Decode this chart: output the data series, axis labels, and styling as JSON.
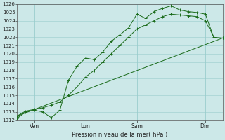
{
  "bg_color": "#cce8e8",
  "grid_color": "#99cccc",
  "line_color": "#1a6b1a",
  "title": "Pression niveau de la mer( hPa )",
  "ylim": [
    1012,
    1026
  ],
  "xlim": [
    0,
    12
  ],
  "yticks": [
    1012,
    1013,
    1014,
    1015,
    1016,
    1017,
    1018,
    1019,
    1020,
    1021,
    1022,
    1023,
    1024,
    1025,
    1026
  ],
  "xtick_positions": [
    1,
    4,
    7,
    11
  ],
  "xtick_labels": [
    "Ven",
    "Lun",
    "Sam",
    "Dim"
  ],
  "series1_x": [
    0,
    0.5,
    1.0,
    1.5,
    2.0,
    2.5,
    3.0,
    3.5,
    4.0,
    4.5,
    5.0,
    5.5,
    6.0,
    6.5,
    7.0,
    7.5,
    8.0,
    8.5,
    9.0,
    9.5,
    10.0,
    10.5,
    11.0,
    11.5,
    12.0
  ],
  "series1_y": [
    1012.2,
    1013.0,
    1013.2,
    1013.0,
    1012.3,
    1013.2,
    1016.8,
    1018.5,
    1019.5,
    1019.3,
    1020.2,
    1021.5,
    1022.3,
    1023.1,
    1024.8,
    1024.3,
    1025.1,
    1025.5,
    1025.8,
    1025.3,
    1025.1,
    1025.0,
    1024.8,
    1021.9,
    1021.9
  ],
  "series2_x": [
    0,
    0.5,
    1.0,
    1.5,
    2.0,
    2.5,
    3.0,
    3.5,
    4.0,
    4.5,
    5.0,
    5.5,
    6.0,
    6.5,
    7.0,
    7.5,
    8.0,
    8.5,
    9.0,
    9.5,
    10.0,
    10.5,
    11.0,
    11.5,
    12.0
  ],
  "series2_y": [
    1012.5,
    1013.1,
    1013.3,
    1013.5,
    1013.8,
    1014.2,
    1015.0,
    1016.0,
    1017.2,
    1018.0,
    1019.0,
    1020.0,
    1021.0,
    1022.0,
    1023.0,
    1023.5,
    1024.0,
    1024.5,
    1024.8,
    1024.7,
    1024.6,
    1024.5,
    1024.0,
    1022.0,
    1021.9
  ],
  "series3_x": [
    0,
    12.0
  ],
  "series3_y": [
    1012.5,
    1021.9
  ],
  "title_fontsize": 6,
  "tick_fontsize": 5,
  "xtick_fontsize": 5.5
}
